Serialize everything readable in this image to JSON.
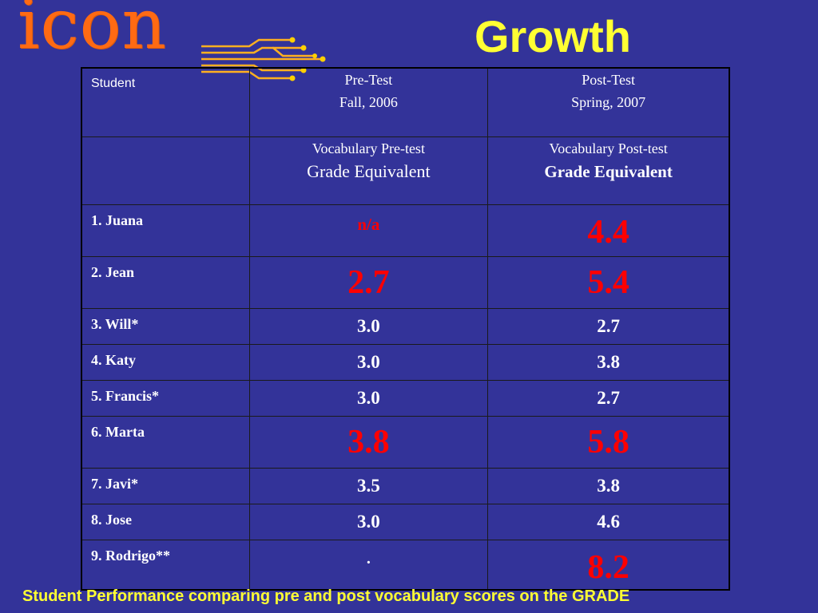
{
  "logo": {
    "text": "icon"
  },
  "title": "Growth",
  "table": {
    "header": {
      "student": "Student",
      "pre_line1": "Pre-Test",
      "pre_line2": "Fall, 2006",
      "post_line1": "Post-Test",
      "post_line2": "Spring, 2007"
    },
    "subheader": {
      "pre_line1": "Vocabulary Pre-test",
      "pre_line2": "Grade Equivalent",
      "post_line1": "Vocabulary Post-test",
      "post_line2": "Grade Equivalent"
    },
    "rows": [
      {
        "student": "1. Juana",
        "pre": "n/a",
        "post": "4.4"
      },
      {
        "student": "2. Jean",
        "pre": "2.7",
        "post": "5.4"
      },
      {
        "student": "3. Will*",
        "pre": "3.0",
        "post": "2.7"
      },
      {
        "student": "4. Katy",
        "pre": "3.0",
        "post": "3.8"
      },
      {
        "student": "5. Francis*",
        "pre": "3.0",
        "post": "2.7"
      },
      {
        "student": "6. Marta",
        "pre": "3.8",
        "post": "5.8"
      },
      {
        "student": "7. Javi*",
        "pre": "3.5",
        "post": "3.8"
      },
      {
        "student": "8. Jose",
        "pre": "3.0",
        "post": "4.6"
      },
      {
        "student": "9. Rodrigo**",
        "pre": ".",
        "post": "8.2"
      }
    ]
  },
  "caption": "Student Performance comparing pre and post vocabulary scores on the GRADE",
  "colors": {
    "background": "#333399",
    "title": "#ffff33",
    "highlight": "#ff0000",
    "logo": "#ff6a13"
  }
}
